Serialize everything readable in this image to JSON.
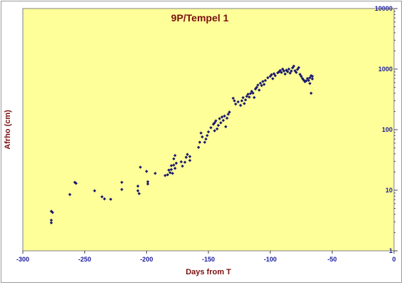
{
  "chart_data": {
    "type": "scatter",
    "title": "9P/Tempel 1",
    "xlabel": "Days from T",
    "ylabel": "Afrho (cm)",
    "xlim": [
      -300,
      0
    ],
    "ylim": [
      1,
      10000
    ],
    "y_scale": "log",
    "x_ticks": [
      "-300",
      "-250",
      "-200",
      "-150",
      "-100",
      "-50",
      "0"
    ],
    "x_tick_values": [
      -300,
      -250,
      -200,
      -150,
      -100,
      -50,
      0
    ],
    "y_ticks": [
      "1",
      "10",
      "100",
      "1000",
      "10000"
    ],
    "y_tick_values": [
      1,
      10,
      100,
      1000,
      10000
    ],
    "grid": false,
    "legend": "none",
    "colors": {
      "plot_background": "#ffff99",
      "marker": "#1a1a6e",
      "title": "#7a1010",
      "tick_labels": "#1a1aa0"
    },
    "series": [
      {
        "points": [
          [
            -277,
            4.5
          ],
          [
            -276,
            4.3
          ],
          [
            -277,
            3.2
          ],
          [
            -277,
            2.9
          ],
          [
            -262,
            8.5
          ],
          [
            -258,
            13.5
          ],
          [
            -257,
            13
          ],
          [
            -242,
            9.8
          ],
          [
            -236,
            7.8
          ],
          [
            -234,
            7.2
          ],
          [
            -229,
            7.1
          ],
          [
            -220,
            10.3
          ],
          [
            -220,
            13.5
          ],
          [
            -207,
            11.7
          ],
          [
            -207,
            9.8
          ],
          [
            -206,
            8.8
          ],
          [
            -205,
            24
          ],
          [
            -200,
            20.5
          ],
          [
            -199,
            13.8
          ],
          [
            -199,
            12.7
          ],
          [
            -193,
            19
          ],
          [
            -185,
            17.5
          ],
          [
            -183,
            18
          ],
          [
            -182,
            21.5
          ],
          [
            -181,
            19.5
          ],
          [
            -180,
            25.5
          ],
          [
            -180,
            22
          ],
          [
            -179,
            19
          ],
          [
            -178,
            26
          ],
          [
            -178,
            33
          ],
          [
            -177,
            37.5
          ],
          [
            -177,
            23
          ],
          [
            -176,
            28
          ],
          [
            -172,
            29.5
          ],
          [
            -171,
            25
          ],
          [
            -169,
            29
          ],
          [
            -168,
            35
          ],
          [
            -167,
            39
          ],
          [
            -165,
            31
          ],
          [
            -165,
            36
          ],
          [
            -158,
            51
          ],
          [
            -157,
            62
          ],
          [
            -156,
            88
          ],
          [
            -155,
            76
          ],
          [
            -153,
            62
          ],
          [
            -152,
            70
          ],
          [
            -151,
            80
          ],
          [
            -150,
            92
          ],
          [
            -148,
            108
          ],
          [
            -146,
            123
          ],
          [
            -145,
            96
          ],
          [
            -145,
            130
          ],
          [
            -144,
            140
          ],
          [
            -143,
            103
          ],
          [
            -142,
            118
          ],
          [
            -141,
            152
          ],
          [
            -140,
            130
          ],
          [
            -139,
            162
          ],
          [
            -138,
            142
          ],
          [
            -137,
            168
          ],
          [
            -136,
            112
          ],
          [
            -135,
            155
          ],
          [
            -134,
            180
          ],
          [
            -133,
            195
          ],
          [
            -130,
            330
          ],
          [
            -129,
            300
          ],
          [
            -128,
            265
          ],
          [
            -126,
            288
          ],
          [
            -124,
            252
          ],
          [
            -123,
            300
          ],
          [
            -122,
            338
          ],
          [
            -121,
            270
          ],
          [
            -120,
            310
          ],
          [
            -119,
            355
          ],
          [
            -118,
            385
          ],
          [
            -117,
            345
          ],
          [
            -116,
            395
          ],
          [
            -115,
            430
          ],
          [
            -114,
            402
          ],
          [
            -113,
            340
          ],
          [
            -112,
            470
          ],
          [
            -111,
            500
          ],
          [
            -110,
            545
          ],
          [
            -109,
            450
          ],
          [
            -108,
            585
          ],
          [
            -107,
            535
          ],
          [
            -106,
            625
          ],
          [
            -105,
            560
          ],
          [
            -104,
            650
          ],
          [
            -102,
            720
          ],
          [
            -100,
            760
          ],
          [
            -99,
            810
          ],
          [
            -98,
            695
          ],
          [
            -97,
            840
          ],
          [
            -96,
            780
          ],
          [
            -94,
            870
          ],
          [
            -93,
            900
          ],
          [
            -92,
            950
          ],
          [
            -91,
            880
          ],
          [
            -90,
            1000
          ],
          [
            -89,
            930
          ],
          [
            -88,
            830
          ],
          [
            -87,
            960
          ],
          [
            -86,
            905
          ],
          [
            -85,
            1000
          ],
          [
            -84,
            860
          ],
          [
            -83,
            930
          ],
          [
            -82,
            1050
          ],
          [
            -81,
            1120
          ],
          [
            -80,
            940
          ],
          [
            -79,
            880
          ],
          [
            -78,
            990
          ],
          [
            -77,
            1060
          ],
          [
            -76,
            820
          ],
          [
            -75,
            760
          ],
          [
            -74,
            700
          ],
          [
            -73,
            660
          ],
          [
            -72,
            620
          ],
          [
            -71,
            640
          ],
          [
            -70,
            700
          ],
          [
            -69,
            650
          ],
          [
            -68,
            720
          ],
          [
            -68,
            580
          ],
          [
            -67,
            780
          ],
          [
            -67,
            400
          ],
          [
            -66,
            760
          ],
          [
            -66,
            690
          ]
        ]
      }
    ]
  }
}
